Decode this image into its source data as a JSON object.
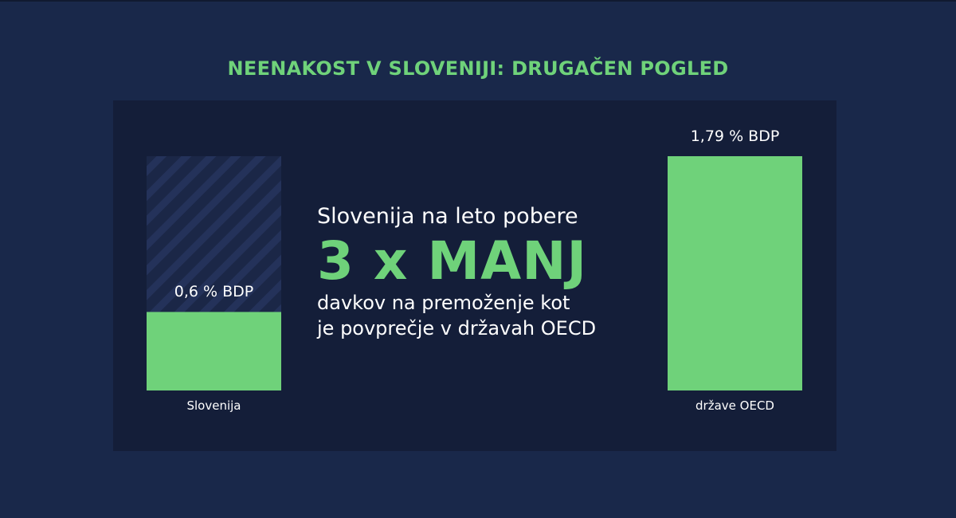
{
  "title": "NEENAKOST V SLOVENIJI: DRUGAČEN POGLED",
  "message": {
    "line1": "Slovenija na leto pobere",
    "highlight": "3 x MANJ",
    "line3": "davkov na premoženje kot",
    "line4": "je povprečje v državah OECD"
  },
  "colors": {
    "background": "#19284a",
    "panel": "#141e39",
    "accent": "#6fd27a",
    "hatch": "#24325a"
  },
  "chart_data": {
    "type": "bar",
    "categories": [
      "Slovenija",
      "države OECD"
    ],
    "values": [
      0.6,
      1.79
    ],
    "value_labels": [
      "0,6 % BDP",
      "1,79 % BDP"
    ],
    "ylim": [
      0,
      1.79
    ],
    "grid": false,
    "legend": "none"
  }
}
